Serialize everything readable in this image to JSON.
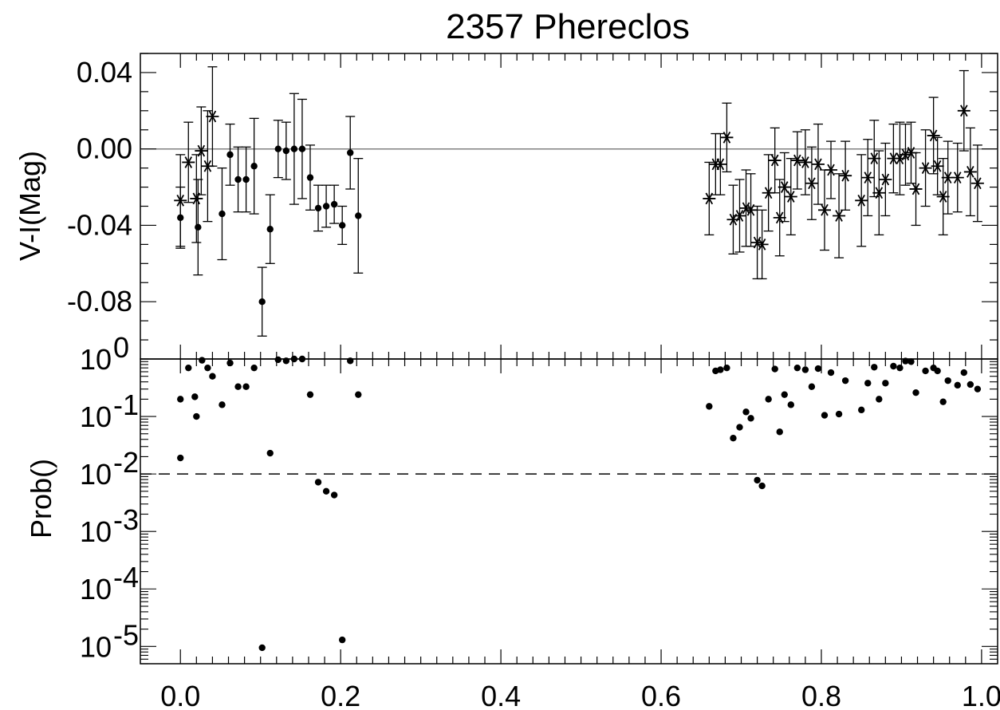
{
  "chart_data": [
    {
      "type": "scatter",
      "title": "2357 Phereclos",
      "xlabel": "",
      "ylabel": "V-I(Mag)",
      "xlim": [
        -0.05,
        1.02
      ],
      "ylim": [
        -0.11,
        0.05
      ],
      "x_ticks": [
        "0.0",
        "0.2",
        "0.4",
        "0.6",
        "0.8",
        "1.0"
      ],
      "y_ticks": [
        "0.04",
        "0.00",
        "-0.04",
        "-0.08"
      ],
      "reference_line": {
        "y": 0.0,
        "color": "#808080"
      },
      "series": [
        {
          "marker": "dot",
          "x": [
            0.0,
            0.022,
            0.052,
            0.062,
            0.072,
            0.082,
            0.092,
            0.102,
            0.112,
            0.122,
            0.132,
            0.142,
            0.152,
            0.162,
            0.172,
            0.182,
            0.192,
            0.202,
            0.212,
            0.222
          ],
          "y": [
            -0.036,
            -0.041,
            -0.034,
            -0.003,
            -0.016,
            -0.016,
            -0.009,
            -0.08,
            -0.042,
            0.0,
            -0.001,
            0.0,
            0.0,
            -0.015,
            -0.031,
            -0.03,
            -0.029,
            -0.04,
            -0.002,
            -0.035
          ],
          "err": [
            0.016,
            0.025,
            0.024,
            0.016,
            0.017,
            0.017,
            0.025,
            0.018,
            0.018,
            0.015,
            0.015,
            0.029,
            0.026,
            0.017,
            0.012,
            0.011,
            0.01,
            0.01,
            0.019,
            0.03
          ]
        },
        {
          "marker": "asterisk",
          "x": [
            0.0,
            0.01,
            0.02,
            0.026,
            0.034,
            0.04,
            0.66,
            0.668,
            0.674,
            0.682,
            0.69,
            0.698,
            0.706,
            0.712,
            0.72,
            0.726,
            0.734,
            0.742,
            0.748,
            0.754,
            0.762,
            0.77,
            0.78,
            0.788,
            0.796,
            0.804,
            0.812,
            0.822,
            0.83,
            0.85,
            0.858,
            0.866,
            0.872,
            0.88,
            0.89,
            0.898,
            0.905,
            0.912,
            0.918,
            0.93,
            0.94,
            0.945,
            0.952,
            0.958,
            0.97,
            0.978,
            0.986,
            0.995
          ],
          "y": [
            -0.027,
            -0.007,
            -0.026,
            -0.001,
            -0.009,
            0.017,
            -0.026,
            -0.008,
            -0.008,
            0.006,
            -0.037,
            -0.035,
            -0.031,
            -0.032,
            -0.049,
            -0.05,
            -0.023,
            -0.006,
            -0.036,
            -0.02,
            -0.025,
            -0.006,
            -0.007,
            -0.018,
            -0.008,
            -0.032,
            -0.011,
            -0.035,
            -0.014,
            -0.027,
            -0.015,
            -0.005,
            -0.023,
            -0.016,
            -0.005,
            -0.005,
            -0.003,
            -0.002,
            -0.021,
            -0.01,
            0.007,
            -0.009,
            -0.025,
            -0.015,
            -0.015,
            0.02,
            -0.012,
            -0.018
          ],
          "err": [
            0.024,
            0.021,
            0.023,
            0.023,
            0.029,
            0.026,
            0.019,
            0.016,
            0.016,
            0.018,
            0.018,
            0.019,
            0.02,
            0.019,
            0.019,
            0.018,
            0.02,
            0.017,
            0.02,
            0.018,
            0.02,
            0.015,
            0.017,
            0.019,
            0.021,
            0.021,
            0.015,
            0.022,
            0.018,
            0.024,
            0.02,
            0.02,
            0.022,
            0.019,
            0.018,
            0.019,
            0.016,
            0.016,
            0.019,
            0.02,
            0.02,
            0.015,
            0.02,
            0.019,
            0.018,
            0.021,
            0.023,
            0.02
          ]
        }
      ]
    },
    {
      "type": "scatter",
      "xlabel": "",
      "ylabel": "Prob()",
      "ylog": true,
      "ylim": [
        5e-06,
        1.0
      ],
      "xlim": [
        -0.05,
        1.02
      ],
      "x_ticks": [
        "0.0",
        "0.2",
        "0.4",
        "0.6",
        "0.8",
        "1.0"
      ],
      "y_ticks": [
        {
          "base": "10",
          "exp": "0",
          "value": 1
        },
        {
          "base": "10",
          "exp": "-1",
          "value": 0.1
        },
        {
          "base": "10",
          "exp": "-2",
          "value": 0.01
        },
        {
          "base": "10",
          "exp": "-3",
          "value": 0.001
        },
        {
          "base": "10",
          "exp": "-4",
          "value": 0.0001
        },
        {
          "base": "10",
          "exp": "-5",
          "value": 1e-05
        }
      ],
      "threshold_line": {
        "y": 0.01,
        "style": "dashed"
      },
      "series": [
        {
          "marker": "dot",
          "x": [
            0.0,
            0.0,
            0.01,
            0.018,
            0.02,
            0.027,
            0.034,
            0.04,
            0.052,
            0.062,
            0.072,
            0.082,
            0.092,
            0.102,
            0.112,
            0.122,
            0.132,
            0.142,
            0.152,
            0.162,
            0.172,
            0.182,
            0.192,
            0.202,
            0.212,
            0.222,
            0.66,
            0.668,
            0.674,
            0.682,
            0.69,
            0.698,
            0.706,
            0.712,
            0.72,
            0.726,
            0.734,
            0.742,
            0.748,
            0.754,
            0.762,
            0.77,
            0.78,
            0.788,
            0.796,
            0.804,
            0.812,
            0.822,
            0.83,
            0.85,
            0.858,
            0.866,
            0.872,
            0.88,
            0.89,
            0.898,
            0.905,
            0.912,
            0.918,
            0.93,
            0.94,
            0.945,
            0.952,
            0.958,
            0.97,
            0.978,
            0.986,
            0.995
          ],
          "y": [
            0.2,
            0.019,
            0.7,
            0.22,
            0.1,
            0.95,
            0.7,
            0.5,
            0.16,
            0.85,
            0.33,
            0.33,
            0.7,
            9.5e-06,
            0.023,
            0.97,
            0.93,
            1.0,
            1.0,
            0.24,
            0.0072,
            0.005,
            0.0043,
            1.3e-05,
            0.93,
            0.24,
            0.15,
            0.62,
            0.65,
            0.7,
            0.042,
            0.065,
            0.12,
            0.093,
            0.0078,
            0.0062,
            0.2,
            0.67,
            0.054,
            0.24,
            0.16,
            0.7,
            0.65,
            0.33,
            0.68,
            0.105,
            0.58,
            0.11,
            0.42,
            0.13,
            0.38,
            0.72,
            0.2,
            0.38,
            0.75,
            0.7,
            0.92,
            0.9,
            0.26,
            0.62,
            0.7,
            0.62,
            0.18,
            0.42,
            0.35,
            0.58,
            0.36,
            0.3
          ]
        }
      ]
    }
  ]
}
